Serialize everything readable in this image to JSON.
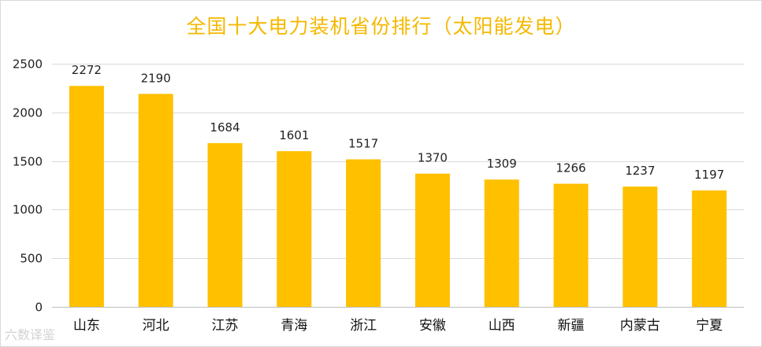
{
  "chart_data": {
    "type": "bar",
    "title": "全国十大电力装机省份排行（太阳能发电）",
    "categories": [
      "山东",
      "河北",
      "江苏",
      "青海",
      "浙江",
      "安徽",
      "山西",
      "新疆",
      "内蒙古",
      "宁夏"
    ],
    "values": [
      2272,
      2190,
      1684,
      1601,
      1517,
      1370,
      1309,
      1266,
      1237,
      1197
    ],
    "ylim": [
      0,
      2500
    ],
    "yticks": [
      0,
      500,
      1000,
      1500,
      2000,
      2500
    ],
    "xlabel": "",
    "ylabel": "",
    "grid": true,
    "bar_color": "#ffc000",
    "title_color": "#f5b800",
    "data_labels": true
  },
  "watermark": "六数译鉴"
}
